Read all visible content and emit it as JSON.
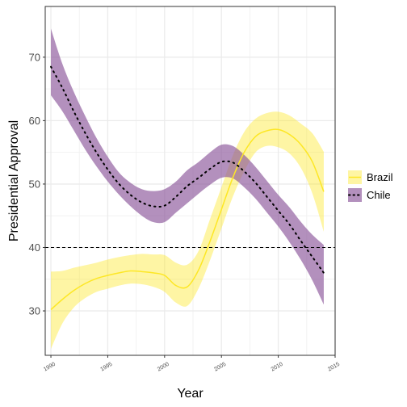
{
  "chart_data": {
    "type": "line",
    "xlabel": "Year",
    "ylabel": "Presidential Approval",
    "xlim": [
      1989.5,
      2015
    ],
    "ylim": [
      23,
      78
    ],
    "x_ticks": [
      1990,
      1995,
      2000,
      2005,
      2010,
      2015
    ],
    "x_tick_labels": [
      "1990",
      "1995",
      "2000",
      "2005",
      "2010",
      "2015"
    ],
    "y_ticks": [
      30,
      40,
      50,
      60,
      70
    ],
    "y_tick_labels": [
      "30",
      "40",
      "50",
      "60",
      "70"
    ],
    "grid": true,
    "legend_position": "right",
    "reference_line": {
      "y": 40,
      "style": "dashed"
    },
    "x": [
      1990,
      1991,
      1992,
      1993,
      1994,
      1995,
      1996,
      1997,
      1998,
      1999,
      2000,
      2001,
      2002,
      2003,
      2004,
      2005,
      2006,
      2007,
      2008,
      2009,
      2010,
      2011,
      2012,
      2013,
      2014
    ],
    "series": [
      {
        "name": "Brazil",
        "color": "#FDE725",
        "line_style": "solid",
        "values": [
          30.2,
          31.8,
          33.2,
          34.3,
          35.1,
          35.6,
          36.0,
          36.3,
          36.2,
          36.0,
          35.6,
          34.0,
          33.8,
          36.5,
          41.0,
          46.0,
          51.0,
          55.0,
          57.5,
          58.4,
          58.6,
          57.8,
          56.2,
          53.5,
          48.8
        ],
        "lower": [
          24.0,
          28.0,
          30.5,
          32.0,
          33.0,
          33.5,
          34.0,
          34.3,
          34.2,
          33.8,
          33.0,
          31.3,
          30.8,
          33.6,
          38.0,
          43.0,
          48.0,
          52.0,
          55.0,
          56.0,
          55.8,
          54.8,
          52.5,
          48.5,
          42.5
        ],
        "upper": [
          36.2,
          36.3,
          36.8,
          37.2,
          37.6,
          38.1,
          38.5,
          38.8,
          39.0,
          38.9,
          38.8,
          37.6,
          37.3,
          39.5,
          44.5,
          49.5,
          54.5,
          58.2,
          60.3,
          61.2,
          61.4,
          60.8,
          59.5,
          58.0,
          55.1
        ]
      },
      {
        "name": "Chile",
        "color": "#8B559A",
        "line_style": "dotted",
        "values": [
          68.5,
          65.2,
          61.5,
          58.1,
          55.0,
          52.3,
          50.0,
          48.3,
          47.1,
          46.5,
          46.6,
          48.0,
          49.7,
          51.0,
          52.4,
          53.5,
          53.4,
          52.0,
          50.2,
          48.0,
          45.8,
          43.6,
          41.0,
          38.5,
          36.0
        ],
        "lower": [
          64.0,
          61.5,
          58.5,
          55.5,
          52.8,
          50.4,
          48.3,
          46.5,
          45.0,
          44.0,
          44.0,
          45.5,
          47.0,
          48.5,
          49.9,
          51.0,
          50.9,
          49.5,
          47.7,
          45.5,
          43.3,
          40.8,
          38.0,
          34.8,
          31.0
        ],
        "upper": [
          74.5,
          69.0,
          64.6,
          60.8,
          57.3,
          54.3,
          51.8,
          50.2,
          49.2,
          48.9,
          49.2,
          50.4,
          52.2,
          53.5,
          55.0,
          56.2,
          56.0,
          54.6,
          52.7,
          50.5,
          48.3,
          46.3,
          44.0,
          42.0,
          40.4
        ]
      }
    ]
  }
}
